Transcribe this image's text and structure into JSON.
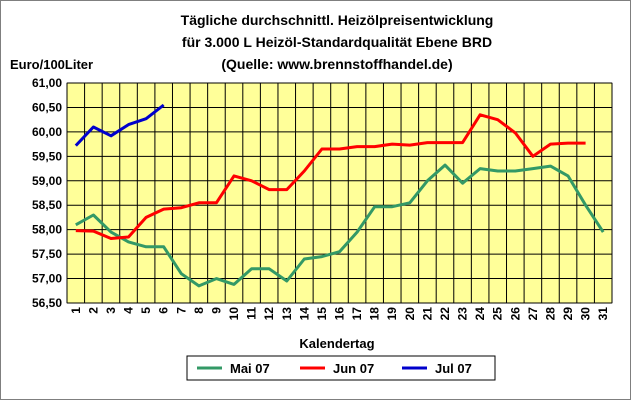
{
  "chart_data": {
    "type": "line",
    "title_lines": [
      "Tägliche durchschnittl. Heizölpreisentwicklung",
      "für 3.000 L Heizöl-Standardqualität Ebene BRD",
      "(Quelle: www.brennstoffhandel.de)"
    ],
    "ylabel": "Euro/100Liter",
    "xlabel": "Kalendertag",
    "ylim": [
      56.5,
      61.0
    ],
    "yticks": [
      "56,50",
      "57,00",
      "57,50",
      "58,00",
      "58,50",
      "59,00",
      "59,50",
      "60,00",
      "60,50",
      "61,00"
    ],
    "x": [
      1,
      2,
      3,
      4,
      5,
      6,
      7,
      8,
      9,
      10,
      11,
      12,
      13,
      14,
      15,
      16,
      17,
      18,
      19,
      20,
      21,
      22,
      23,
      24,
      25,
      26,
      27,
      28,
      29,
      30,
      31
    ],
    "grid": true,
    "legend_position": "bottom",
    "plot_background": "#ffff99",
    "series": [
      {
        "name": "Mai 07",
        "color": "#339966",
        "values": [
          58.1,
          58.3,
          57.95,
          57.75,
          57.65,
          57.65,
          57.1,
          56.85,
          57.0,
          56.88,
          57.2,
          57.2,
          56.95,
          57.4,
          57.45,
          57.55,
          57.95,
          58.47,
          58.47,
          58.55,
          59.0,
          59.32,
          58.95,
          59.25,
          59.2,
          59.2,
          59.25,
          59.3,
          59.1,
          58.5,
          57.95
        ]
      },
      {
        "name": "Jun 07",
        "color": "#ff0000",
        "values": [
          57.98,
          57.97,
          57.82,
          57.85,
          58.25,
          58.42,
          58.45,
          58.55,
          58.55,
          59.1,
          59.0,
          58.82,
          58.82,
          59.2,
          59.65,
          59.65,
          59.7,
          59.7,
          59.75,
          59.73,
          59.78,
          59.78,
          59.78,
          60.35,
          60.25,
          59.98,
          59.5,
          59.75,
          59.77,
          59.77,
          null
        ]
      },
      {
        "name": "Jul 07",
        "color": "#0000cc",
        "values": [
          59.72,
          60.1,
          59.92,
          60.15,
          60.27,
          60.55,
          null,
          null,
          null,
          null,
          null,
          null,
          null,
          null,
          null,
          null,
          null,
          null,
          null,
          null,
          null,
          null,
          null,
          null,
          null,
          null,
          null,
          null,
          null,
          null,
          null
        ]
      }
    ]
  }
}
